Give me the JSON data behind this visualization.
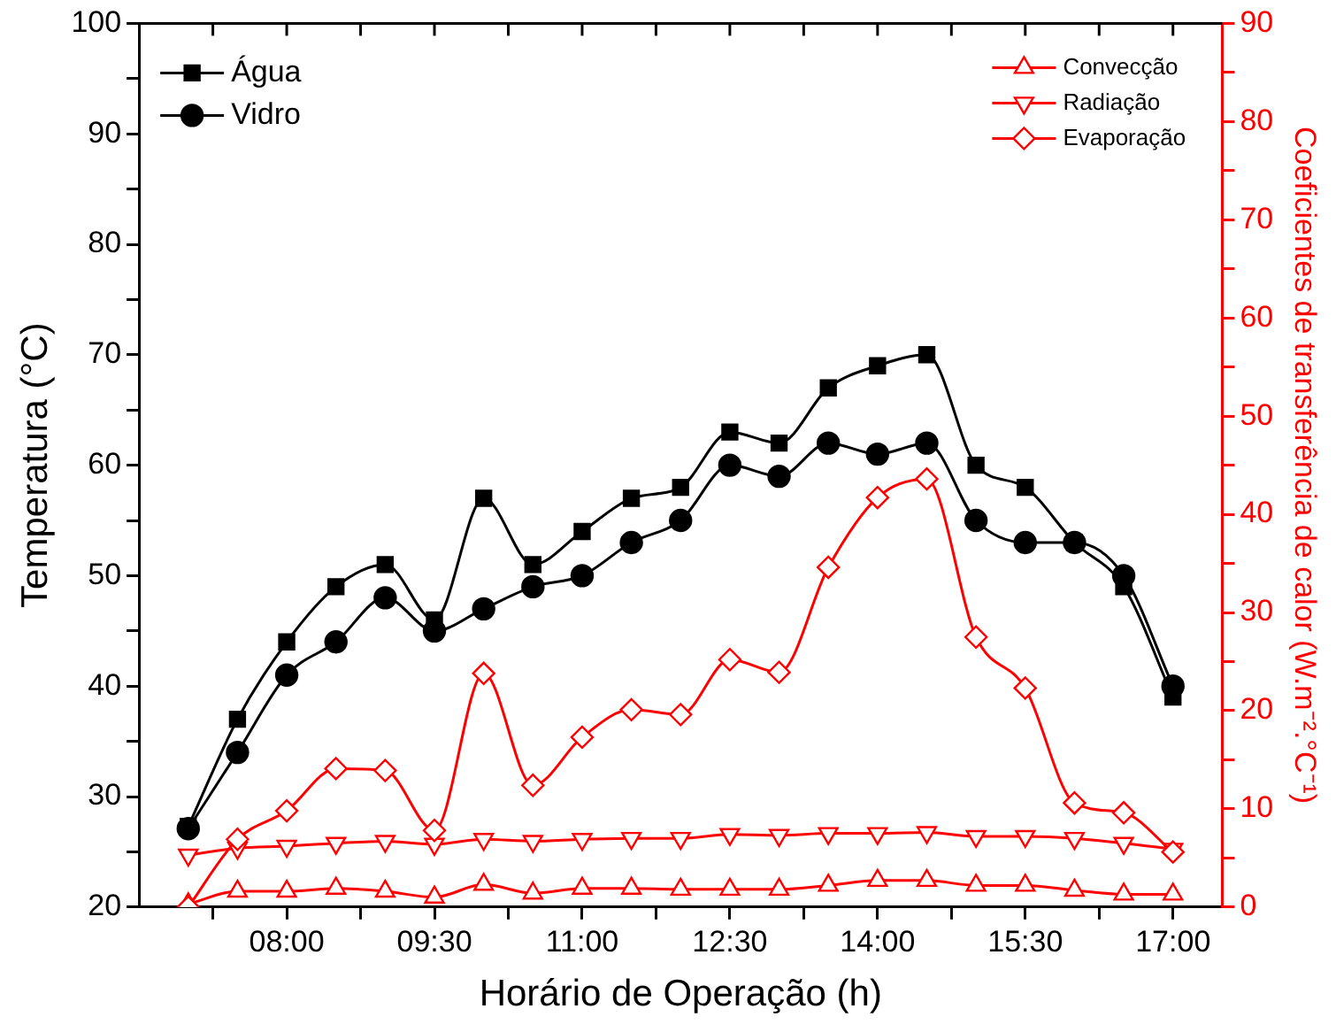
{
  "chart_data": {
    "type": "line",
    "xlabel": "Horário de Operação (h)",
    "ylabel": "Temperatura (°C)",
    "y2label": "Coeficientes de transferência de calor (W.m⁻².°C⁻¹)",
    "x": [
      7,
      7.5,
      8,
      8.5,
      9,
      9.5,
      10,
      10.5,
      11,
      11.5,
      12,
      12.5,
      13,
      13.5,
      14,
      14.5,
      15,
      15.5,
      16,
      16.5,
      17
    ],
    "xlim": [
      6.5,
      17.5
    ],
    "xticks": [
      {
        "value": 7.25,
        "label": null
      },
      {
        "value": 8,
        "label": "08:00"
      },
      {
        "value": 8.75,
        "label": null
      },
      {
        "value": 9.5,
        "label": "09:30"
      },
      {
        "value": 10.25,
        "label": null
      },
      {
        "value": 11,
        "label": "11:00"
      },
      {
        "value": 11.75,
        "label": null
      },
      {
        "value": 12.5,
        "label": "12:30"
      },
      {
        "value": 13.25,
        "label": null
      },
      {
        "value": 14,
        "label": "14:00"
      },
      {
        "value": 14.75,
        "label": null
      },
      {
        "value": 15.5,
        "label": "15:30"
      },
      {
        "value": 16.25,
        "label": null
      },
      {
        "value": 17,
        "label": "17:00"
      }
    ],
    "ylim": [
      20,
      100
    ],
    "yticks": [
      20,
      {
        "value": 25,
        "label": null
      },
      30,
      {
        "value": 35,
        "label": null
      },
      40,
      {
        "value": 45,
        "label": null
      },
      50,
      {
        "value": 55,
        "label": null
      },
      60,
      {
        "value": 65,
        "label": null
      },
      70,
      {
        "value": 75,
        "label": null
      },
      80,
      {
        "value": 85,
        "label": null
      },
      90,
      {
        "value": 95,
        "label": null
      },
      100
    ],
    "y2lim": [
      0,
      90
    ],
    "y2ticks": [
      0,
      {
        "value": 5,
        "label": null
      },
      10,
      {
        "value": 15,
        "label": null
      },
      20,
      {
        "value": 25,
        "label": null
      },
      30,
      {
        "value": 35,
        "label": null
      },
      40,
      {
        "value": 45,
        "label": null
      },
      50,
      {
        "value": 55,
        "label": null
      },
      60,
      {
        "value": 65,
        "label": null
      },
      70,
      {
        "value": 75,
        "label": null
      },
      80,
      {
        "value": 85,
        "label": null
      },
      90
    ],
    "grid": false,
    "legend": "top",
    "line_style": "solid",
    "series": [
      {
        "name": "Água",
        "color": "#000000",
        "marker": "square",
        "values": [
          27.3,
          37,
          44,
          49,
          51,
          46,
          57,
          51,
          54,
          57,
          58,
          63,
          62,
          67,
          69,
          70,
          60,
          58,
          53,
          49,
          39
        ]
      },
      {
        "name": "Vidro",
        "color": "#000000",
        "marker": "circle",
        "values": [
          27.1,
          34,
          41,
          44,
          48,
          45,
          47,
          49,
          50,
          53,
          55,
          60,
          59,
          62,
          61,
          62,
          55,
          53,
          53,
          50,
          40
        ]
      },
      {
        "name": "Convecção",
        "color": "#ff0000",
        "marker": "triangle",
        "axis": "y2",
        "values": [
          0.3,
          1.6,
          1.6,
          1.9,
          1.6,
          1.0,
          2.3,
          1.4,
          1.9,
          1.9,
          1.8,
          1.8,
          1.8,
          2.2,
          2.7,
          2.7,
          2.2,
          2.2,
          1.7,
          1.3,
          1.3
        ]
      },
      {
        "name": "Radiação",
        "color": "#ff0000",
        "marker": "triangle-down",
        "axis": "y2",
        "values": [
          5.3,
          6,
          6.2,
          6.5,
          6.7,
          6.4,
          6.9,
          6.7,
          6.9,
          7,
          7,
          7.4,
          7.3,
          7.5,
          7.5,
          7.6,
          7.2,
          7.2,
          7,
          6.5,
          5.9
        ]
      },
      {
        "name": "Evaporação",
        "color": "#ff0000",
        "marker": "diamond",
        "axis": "y2",
        "values": [
          0,
          6.9,
          9.8,
          14.1,
          13.9,
          7.8,
          23.8,
          12.4,
          17.3,
          20.1,
          19.6,
          25.2,
          23.9,
          34.6,
          41.7,
          43.6,
          27.5,
          22.3,
          10.6,
          9.6,
          5.6
        ]
      }
    ]
  }
}
